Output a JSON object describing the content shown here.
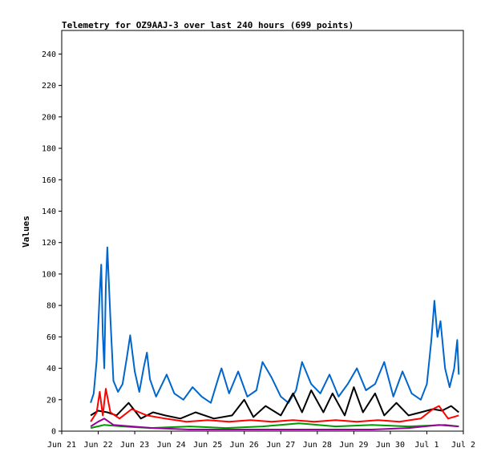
{
  "chart_data": {
    "type": "line",
    "title": "Telemetry for OZ9AAJ-3 over last 240 hours (699 points)",
    "xlabel": "",
    "ylabel": "Values",
    "xlim": [
      "Jun 21",
      "Jul 2"
    ],
    "ylim": [
      0,
      255
    ],
    "x_ticks": [
      "Jun 21",
      "Jun 22",
      "Jun 23",
      "Jun 24",
      "Jun 25",
      "Jun 26",
      "Jun 27",
      "Jun 28",
      "Jun 29",
      "Jun 30",
      "Jul 1",
      "Jul 2"
    ],
    "y_ticks": [
      0,
      20,
      40,
      60,
      80,
      100,
      120,
      140,
      160,
      180,
      200,
      220,
      240
    ],
    "grid": false,
    "series": [
      {
        "color": "#0066cc",
        "points": [
          [
            "Jun 21 19:00",
            18
          ],
          [
            "Jun 21 21:00",
            24
          ],
          [
            "Jun 21 23:00",
            45
          ],
          [
            "Jun 22 01:00",
            88
          ],
          [
            "Jun 22 02:00",
            106
          ],
          [
            "Jun 22 03:00",
            62
          ],
          [
            "Jun 22 04:00",
            40
          ],
          [
            "Jun 22 05:00",
            92
          ],
          [
            "Jun 22 06:00",
            117
          ],
          [
            "Jun 22 08:00",
            72
          ],
          [
            "Jun 22 10:00",
            32
          ],
          [
            "Jun 22 13:00",
            25
          ],
          [
            "Jun 22 16:00",
            30
          ],
          [
            "Jun 22 19:00",
            48
          ],
          [
            "Jun 22 21:00",
            61
          ],
          [
            "Jun 23 00:00",
            38
          ],
          [
            "Jun 23 03:00",
            25
          ],
          [
            "Jun 23 06:00",
            41
          ],
          [
            "Jun 23 08:00",
            50
          ],
          [
            "Jun 23 10:00",
            33
          ],
          [
            "Jun 23 14:00",
            22
          ],
          [
            "Jun 23 18:00",
            30
          ],
          [
            "Jun 23 21:00",
            36
          ],
          [
            "Jun 24 02:00",
            24
          ],
          [
            "Jun 24 08:00",
            20
          ],
          [
            "Jun 24 14:00",
            28
          ],
          [
            "Jun 24 20:00",
            22
          ],
          [
            "Jun 25 02:00",
            18
          ],
          [
            "Jun 25 07:00",
            34
          ],
          [
            "Jun 25 09:00",
            40
          ],
          [
            "Jun 25 14:00",
            24
          ],
          [
            "Jun 25 20:00",
            38
          ],
          [
            "Jun 26 02:00",
            22
          ],
          [
            "Jun 26 08:00",
            26
          ],
          [
            "Jun 26 12:00",
            44
          ],
          [
            "Jun 26 18:00",
            34
          ],
          [
            "Jun 27 00:00",
            22
          ],
          [
            "Jun 27 05:00",
            18
          ],
          [
            "Jun 27 10:00",
            26
          ],
          [
            "Jun 27 14:00",
            44
          ],
          [
            "Jun 27 20:00",
            30
          ],
          [
            "Jun 28 02:00",
            24
          ],
          [
            "Jun 28 08:00",
            36
          ],
          [
            "Jun 28 14:00",
            22
          ],
          [
            "Jun 28 20:00",
            30
          ],
          [
            "Jun 29 02:00",
            40
          ],
          [
            "Jun 29 08:00",
            26
          ],
          [
            "Jun 29 14:00",
            30
          ],
          [
            "Jun 29 20:00",
            44
          ],
          [
            "Jun 30 02:00",
            22
          ],
          [
            "Jun 30 08:00",
            38
          ],
          [
            "Jun 30 14:00",
            24
          ],
          [
            "Jun 30 20:00",
            20
          ],
          [
            "Jul 1 00:00",
            30
          ],
          [
            "Jul 1 03:00",
            58
          ],
          [
            "Jul 1 05:00",
            83
          ],
          [
            "Jul 1 07:00",
            60
          ],
          [
            "Jul 1 09:00",
            70
          ],
          [
            "Jul 1 12:00",
            40
          ],
          [
            "Jul 1 15:00",
            28
          ],
          [
            "Jul 1 18:00",
            40
          ],
          [
            "Jul 1 20:00",
            58
          ],
          [
            "Jul 1 21:00",
            36
          ]
        ]
      },
      {
        "color": "#000000",
        "points": [
          [
            "Jun 21 19:00",
            10
          ],
          [
            "Jun 22 00:00",
            13
          ],
          [
            "Jun 22 06:00",
            12
          ],
          [
            "Jun 22 12:00",
            10
          ],
          [
            "Jun 22 20:00",
            18
          ],
          [
            "Jun 23 04:00",
            8
          ],
          [
            "Jun 23 12:00",
            12
          ],
          [
            "Jun 23 20:00",
            10
          ],
          [
            "Jun 24 06:00",
            8
          ],
          [
            "Jun 24 16:00",
            12
          ],
          [
            "Jun 25 04:00",
            8
          ],
          [
            "Jun 25 16:00",
            10
          ],
          [
            "Jun 26 00:00",
            20
          ],
          [
            "Jun 26 06:00",
            9
          ],
          [
            "Jun 26 14:00",
            16
          ],
          [
            "Jun 27 00:00",
            10
          ],
          [
            "Jun 27 08:00",
            24
          ],
          [
            "Jun 27 14:00",
            12
          ],
          [
            "Jun 27 20:00",
            26
          ],
          [
            "Jun 28 04:00",
            12
          ],
          [
            "Jun 28 10:00",
            24
          ],
          [
            "Jun 28 18:00",
            10
          ],
          [
            "Jun 29 00:00",
            28
          ],
          [
            "Jun 29 06:00",
            12
          ],
          [
            "Jun 29 14:00",
            24
          ],
          [
            "Jun 29 20:00",
            10
          ],
          [
            "Jun 30 04:00",
            18
          ],
          [
            "Jun 30 12:00",
            10
          ],
          [
            "Jun 30 20:00",
            12
          ],
          [
            "Jul 1 04:00",
            14
          ],
          [
            "Jul 1 10:00",
            13
          ],
          [
            "Jul 1 16:00",
            16
          ],
          [
            "Jul 1 21:00",
            12
          ]
        ]
      },
      {
        "color": "#ff0000",
        "points": [
          [
            "Jun 21 19:00",
            6
          ],
          [
            "Jun 21 23:00",
            12
          ],
          [
            "Jun 22 01:00",
            25
          ],
          [
            "Jun 22 03:00",
            10
          ],
          [
            "Jun 22 05:00",
            27
          ],
          [
            "Jun 22 08:00",
            12
          ],
          [
            "Jun 22 14:00",
            8
          ],
          [
            "Jun 22 22:00",
            14
          ],
          [
            "Jun 23 08:00",
            10
          ],
          [
            "Jun 23 20:00",
            8
          ],
          [
            "Jun 24 10:00",
            6
          ],
          [
            "Jun 25 00:00",
            7
          ],
          [
            "Jun 25 14:00",
            6
          ],
          [
            "Jun 26 04:00",
            7
          ],
          [
            "Jun 26 18:00",
            6
          ],
          [
            "Jun 27 08:00",
            7
          ],
          [
            "Jun 27 22:00",
            6
          ],
          [
            "Jun 28 12:00",
            7
          ],
          [
            "Jun 29 02:00",
            6
          ],
          [
            "Jun 29 16:00",
            7
          ],
          [
            "Jun 30 06:00",
            6
          ],
          [
            "Jun 30 20:00",
            8
          ],
          [
            "Jul 1 04:00",
            14
          ],
          [
            "Jul 1 08:00",
            16
          ],
          [
            "Jul 1 14:00",
            8
          ],
          [
            "Jul 1 21:00",
            10
          ]
        ]
      },
      {
        "color": "#009900",
        "points": [
          [
            "Jun 21 19:00",
            2
          ],
          [
            "Jun 22 04:00",
            4
          ],
          [
            "Jun 22 16:00",
            3
          ],
          [
            "Jun 23 10:00",
            2
          ],
          [
            "Jun 24 12:00",
            3
          ],
          [
            "Jun 25 12:00",
            2
          ],
          [
            "Jun 26 12:00",
            3
          ],
          [
            "Jun 27 12:00",
            5
          ],
          [
            "Jun 28 12:00",
            3
          ],
          [
            "Jun 29 12:00",
            4
          ],
          [
            "Jun 30 12:00",
            3
          ],
          [
            "Jul 1 12:00",
            4
          ],
          [
            "Jul 1 21:00",
            3
          ]
        ]
      },
      {
        "color": "#990099",
        "points": [
          [
            "Jun 21 19:00",
            3
          ],
          [
            "Jun 22 00:00",
            6
          ],
          [
            "Jun 22 04:00",
            8
          ],
          [
            "Jun 22 10:00",
            4
          ],
          [
            "Jun 22 22:00",
            3
          ],
          [
            "Jun 23 12:00",
            2
          ],
          [
            "Jun 24 12:00",
            1
          ],
          [
            "Jun 25 12:00",
            1
          ],
          [
            "Jun 26 12:00",
            1
          ],
          [
            "Jun 27 12:00",
            1
          ],
          [
            "Jun 28 12:00",
            1
          ],
          [
            "Jun 29 12:00",
            1
          ],
          [
            "Jun 30 12:00",
            2
          ],
          [
            "Jul 1 08:00",
            4
          ],
          [
            "Jul 1 21:00",
            3
          ]
        ]
      }
    ]
  }
}
